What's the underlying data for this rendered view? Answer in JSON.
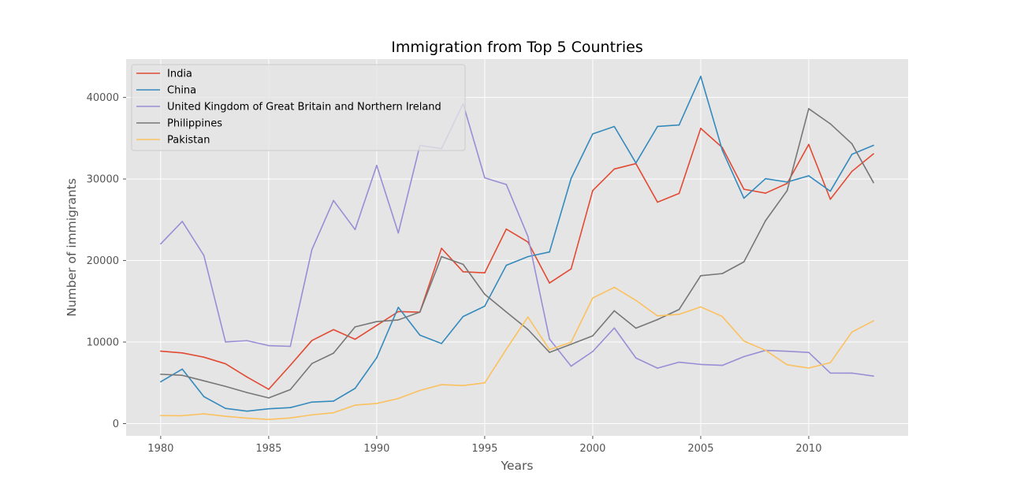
{
  "chart_data": {
    "type": "line",
    "title": "Immigration from Top 5 Countries",
    "xlabel": "Years",
    "ylabel": "Number of immigrants",
    "xlim": [
      1978.4,
      2014.6
    ],
    "ylim": [
      -1500,
      44700
    ],
    "xticks": [
      1980,
      1985,
      1990,
      1995,
      2000,
      2005,
      2010
    ],
    "yticks": [
      0,
      10000,
      20000,
      30000,
      40000
    ],
    "grid": true,
    "legend_position": "top-left",
    "background": "#e5e5e5",
    "x": [
      1980,
      1981,
      1982,
      1983,
      1984,
      1985,
      1986,
      1987,
      1988,
      1989,
      1990,
      1991,
      1992,
      1993,
      1994,
      1995,
      1996,
      1997,
      1998,
      1999,
      2000,
      2001,
      2002,
      2003,
      2004,
      2005,
      2006,
      2007,
      2008,
      2009,
      2010,
      2011,
      2012,
      2013
    ],
    "series": [
      {
        "name": "India",
        "color": "#e24a33",
        "values": [
          8880,
          8670,
          8147,
          7338,
          5704,
          4211,
          7150,
          10189,
          11522,
          10343,
          12041,
          13734,
          13673,
          21496,
          18620,
          18489,
          23859,
          22268,
          17241,
          18974,
          28572,
          31223,
          31889,
          27155,
          28235,
          36210,
          33848,
          28742,
          28261,
          29456,
          34235,
          27509,
          30933,
          33087
        ]
      },
      {
        "name": "China",
        "color": "#348abd",
        "values": [
          5123,
          6682,
          3308,
          1863,
          1527,
          1816,
          1960,
          2643,
          2758,
          4323,
          8076,
          14255,
          10846,
          9817,
          13128,
          14398,
          19415,
          20475,
          21049,
          30069,
          35529,
          36434,
          31961,
          36439,
          36619,
          42584,
          33518,
          27642,
          30037,
          29622,
          30391,
          28502,
          33024,
          34129
        ]
      },
      {
        "name": "United Kingdom of Great Britain and Northern Ireland",
        "color": "#988ed5",
        "values": [
          22045,
          24796,
          20620,
          10015,
          10170,
          9564,
          9470,
          21337,
          27359,
          23795,
          31668,
          23380,
          34123,
          33720,
          39231,
          30145,
          29322,
          22965,
          10367,
          7045,
          8840,
          11728,
          8046,
          6797,
          7533,
          7258,
          7140,
          8216,
          8979,
          8876,
          8724,
          6204,
          6195,
          5827
        ]
      },
      {
        "name": "Philippines",
        "color": "#777777",
        "values": [
          6051,
          5921,
          5249,
          4562,
          3801,
          3150,
          4166,
          7360,
          8639,
          11865,
          12509,
          12718,
          13670,
          20479,
          19532,
          15864,
          13692,
          11549,
          8735,
          9734,
          10763,
          13836,
          11707,
          12758,
          14004,
          18139,
          18400,
          19837,
          24887,
          28573,
          38617,
          36765,
          34315,
          29544
        ]
      },
      {
        "name": "Pakistan",
        "color": "#fbc15e",
        "values": [
          978,
          972,
          1201,
          900,
          668,
          514,
          691,
          1072,
          1334,
          2261,
          2470,
          3079,
          4071,
          4777,
          4666,
          4994,
          9125,
          13073,
          9068,
          9979,
          15400,
          16708,
          15110,
          13205,
          13399,
          14314,
          13127,
          10124,
          8994,
          7217,
          6811,
          7468,
          11227,
          12603
        ]
      }
    ]
  }
}
